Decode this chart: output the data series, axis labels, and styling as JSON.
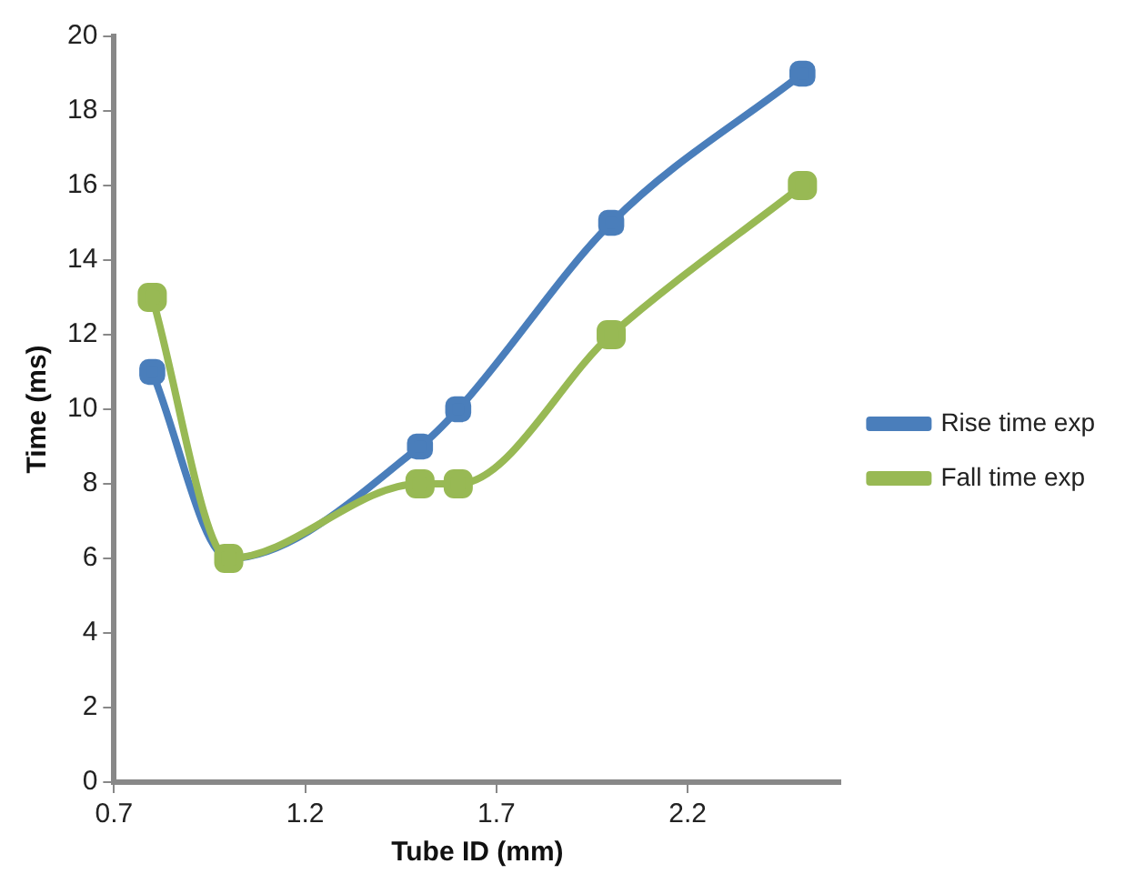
{
  "chart_data": {
    "type": "line",
    "xlabel": "Tube ID (mm)",
    "ylabel": "Time (ms)",
    "xlim": [
      0.7,
      2.6
    ],
    "xticks": [
      0.7,
      1.2,
      1.7,
      2.2
    ],
    "ylim": [
      0,
      20
    ],
    "yticks": [
      0,
      2,
      4,
      6,
      8,
      10,
      12,
      14,
      16,
      18,
      20
    ],
    "grid": false,
    "legend": "right",
    "marker": "square",
    "line_style": "solid",
    "series": [
      {
        "name": "Rise time exp",
        "color": "#4a7ebb",
        "x": [
          0.8,
          1.0,
          1.5,
          1.6,
          2.0,
          2.5
        ],
        "values": [
          11,
          6,
          9,
          10,
          15,
          19
        ]
      },
      {
        "name": "Fall time exp",
        "color": "#98b954",
        "x": [
          0.8,
          1.0,
          1.5,
          1.6,
          2.0,
          2.5
        ],
        "values": [
          13,
          6,
          8,
          8,
          12,
          16
        ]
      }
    ]
  }
}
